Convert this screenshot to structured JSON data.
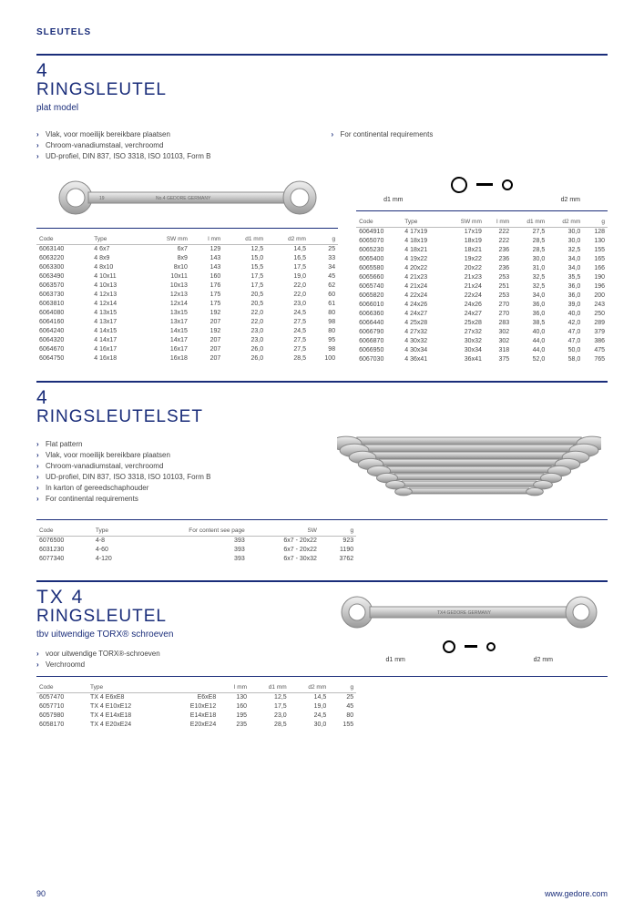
{
  "category": "SLEUTELS",
  "sec1": {
    "model": "4",
    "title": "RINGSLEUTEL",
    "subtitle": "plat model",
    "bullets_left": [
      "Vlak, voor moeilijk bereikbare plaatsen",
      "Chroom-vanadiumstaal, verchroomd",
      "UD-profiel, DIN 837, ISO 3318, ISO 10103, Form B"
    ],
    "bullets_right": [
      "For continental requirements"
    ],
    "size_labels": [
      "d1 mm",
      "d2 mm"
    ],
    "table1_headers": [
      "Code",
      "Type",
      "SW mm",
      "l mm",
      "d1 mm",
      "d2 mm",
      "g"
    ],
    "table1_rows": [
      [
        "6063140",
        "4 6x7",
        "6x7",
        "129",
        "12,5",
        "14,5",
        "25"
      ],
      [
        "6063220",
        "4 8x9",
        "8x9",
        "143",
        "15,0",
        "16,5",
        "33"
      ],
      [
        "6063300",
        "4 8x10",
        "8x10",
        "143",
        "15,5",
        "17,5",
        "34"
      ],
      [
        "6063490",
        "4 10x11",
        "10x11",
        "160",
        "17,5",
        "19,0",
        "45"
      ],
      [
        "6063570",
        "4 10x13",
        "10x13",
        "176",
        "17,5",
        "22,0",
        "62"
      ],
      [
        "6063730",
        "4 12x13",
        "12x13",
        "175",
        "20,5",
        "22,0",
        "60"
      ],
      [
        "6063810",
        "4 12x14",
        "12x14",
        "175",
        "20,5",
        "23,0",
        "61"
      ],
      [
        "6064080",
        "4 13x15",
        "13x15",
        "192",
        "22,0",
        "24,5",
        "80"
      ],
      [
        "6064160",
        "4 13x17",
        "13x17",
        "207",
        "22,0",
        "27,5",
        "98"
      ],
      [
        "6064240",
        "4 14x15",
        "14x15",
        "192",
        "23,0",
        "24,5",
        "80"
      ],
      [
        "6064320",
        "4 14x17",
        "14x17",
        "207",
        "23,0",
        "27,5",
        "95"
      ],
      [
        "6064670",
        "4 16x17",
        "16x17",
        "207",
        "26,0",
        "27,5",
        "98"
      ],
      [
        "6064750",
        "4 16x18",
        "16x18",
        "207",
        "26,0",
        "28,5",
        "100"
      ]
    ],
    "table2_rows": [
      [
        "6064910",
        "4 17x19",
        "17x19",
        "222",
        "27,5",
        "30,0",
        "128"
      ],
      [
        "6065070",
        "4 18x19",
        "18x19",
        "222",
        "28,5",
        "30,0",
        "130"
      ],
      [
        "6065230",
        "4 18x21",
        "18x21",
        "236",
        "28,5",
        "32,5",
        "155"
      ],
      [
        "6065400",
        "4 19x22",
        "19x22",
        "236",
        "30,0",
        "34,0",
        "165"
      ],
      [
        "6065580",
        "4 20x22",
        "20x22",
        "236",
        "31,0",
        "34,0",
        "166"
      ],
      [
        "6065660",
        "4 21x23",
        "21x23",
        "253",
        "32,5",
        "35,5",
        "190"
      ],
      [
        "6065740",
        "4 21x24",
        "21x24",
        "251",
        "32,5",
        "36,0",
        "196"
      ],
      [
        "6065820",
        "4 22x24",
        "22x24",
        "253",
        "34,0",
        "36,0",
        "200"
      ],
      [
        "6066010",
        "4 24x26",
        "24x26",
        "270",
        "36,0",
        "39,0",
        "243"
      ],
      [
        "6066360",
        "4 24x27",
        "24x27",
        "270",
        "36,0",
        "40,0",
        "250"
      ],
      [
        "6066440",
        "4 25x28",
        "25x28",
        "283",
        "38,5",
        "42,0",
        "289"
      ],
      [
        "6066790",
        "4 27x32",
        "27x32",
        "302",
        "40,0",
        "47,0",
        "379"
      ],
      [
        "6066870",
        "4 30x32",
        "30x32",
        "302",
        "44,0",
        "47,0",
        "386"
      ],
      [
        "6066950",
        "4 30x34",
        "30x34",
        "318",
        "44,0",
        "50,0",
        "475"
      ],
      [
        "6067030",
        "4 36x41",
        "36x41",
        "375",
        "52,0",
        "58,0",
        "765"
      ]
    ]
  },
  "sec2": {
    "model": "4",
    "title": "RINGSLEUTELSET",
    "bullets": [
      "Flat pattern",
      "Vlak, voor moeilijk bereikbare plaatsen",
      "Chroom-vanadiumstaal, verchroomd",
      "UD-profiel, DIN 837, ISO 3318, ISO 10103, Form B",
      "In karton of gereedschaphouder",
      "For continental requirements"
    ],
    "headers": [
      "Code",
      "Type",
      "For content see page",
      "SW",
      "g"
    ],
    "rows": [
      [
        "6076500",
        "4-8",
        "393",
        "6x7 - 20x22",
        "923"
      ],
      [
        "6031230",
        "4-60",
        "393",
        "6x7 - 20x22",
        "1190"
      ],
      [
        "6077340",
        "4-120",
        "393",
        "6x7 - 30x32",
        "3762"
      ]
    ]
  },
  "sec3": {
    "model": "TX 4",
    "title": "RINGSLEUTEL",
    "subtitle": "tbv uitwendige TORX® schroeven",
    "bullets": [
      "voor uitwendige TORX®-schroeven",
      "Verchroomd"
    ],
    "size_labels": [
      "d1 mm",
      "d2 mm"
    ],
    "headers": [
      "Code",
      "Type",
      "",
      "l mm",
      "d1 mm",
      "d2 mm",
      "g"
    ],
    "rows": [
      [
        "6057470",
        "TX 4 E6xE8",
        "E6xE8",
        "130",
        "12,5",
        "14,5",
        "25"
      ],
      [
        "6057710",
        "TX 4 E10xE12",
        "E10xE12",
        "160",
        "17,5",
        "19,0",
        "45"
      ],
      [
        "6057980",
        "TX 4 E14xE18",
        "E14xE18",
        "195",
        "23,0",
        "24,5",
        "80"
      ],
      [
        "6058170",
        "TX 4 E20xE24",
        "E20xE24",
        "235",
        "28,5",
        "30,0",
        "155"
      ]
    ]
  },
  "footer": {
    "page": "90",
    "site": "www.gedore.com"
  }
}
